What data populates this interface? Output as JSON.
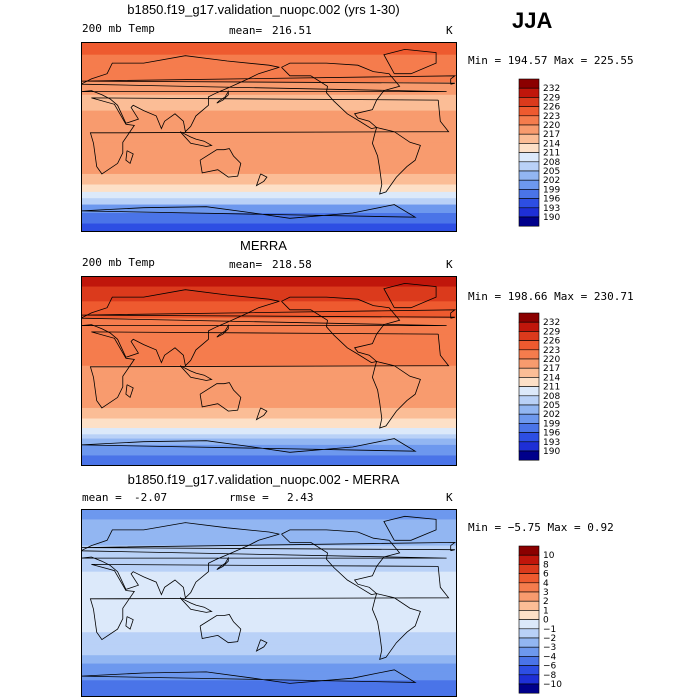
{
  "season": "JJA",
  "units_label": "K",
  "panels": [
    {
      "title": "b1850.f19_g17.validation_nuopc.002 (yrs 1-30)",
      "left_label": "200 mb Temp",
      "stat1_label": "mean=",
      "stat1_value": "216.51",
      "stat2_label": "",
      "stat2_value": "",
      "units": "K",
      "minmax": "Min = 194.57 Max = 225.55",
      "levels": [
        "232",
        "229",
        "226",
        "223",
        "220",
        "217",
        "214",
        "211",
        "208",
        "205",
        "202",
        "199",
        "196",
        "193",
        "190"
      ],
      "colors": [
        "#8b0000",
        "#c0160b",
        "#db3a1c",
        "#ee5a2f",
        "#f57c4d",
        "#f89b6e",
        "#fbbd96",
        "#fde0c7",
        "#dce9fa",
        "#b9d1f7",
        "#92b6f2",
        "#6d98ee",
        "#4a74e8",
        "#2d4ee3",
        "#1e2fd6",
        "#00008b"
      ],
      "bands": [
        {
          "lat": 90,
          "level": 3
        },
        {
          "lat": 78,
          "level": 4
        },
        {
          "lat": 66,
          "level": 4
        },
        {
          "lat": 52,
          "level": 5
        },
        {
          "lat": 40,
          "level": 6
        },
        {
          "lat": 25,
          "level": 5
        },
        {
          "lat": 10,
          "level": 5
        },
        {
          "lat": -5,
          "level": 5
        },
        {
          "lat": -20,
          "level": 5
        },
        {
          "lat": -35,
          "level": 6
        },
        {
          "lat": -45,
          "level": 7
        },
        {
          "lat": -52,
          "level": 8
        },
        {
          "lat": -58,
          "level": 9
        },
        {
          "lat": -64,
          "level": 11
        },
        {
          "lat": -72,
          "level": 12
        },
        {
          "lat": -82,
          "level": 13
        }
      ]
    },
    {
      "title": "MERRA",
      "left_label": "200 mb Temp",
      "stat1_label": "mean=",
      "stat1_value": "218.58",
      "stat2_label": "",
      "stat2_value": "",
      "units": "K",
      "minmax": "Min = 198.66 Max = 230.71",
      "levels": [
        "232",
        "229",
        "226",
        "223",
        "220",
        "217",
        "214",
        "211",
        "208",
        "205",
        "202",
        "199",
        "196",
        "193",
        "190"
      ],
      "colors": [
        "#8b0000",
        "#c0160b",
        "#db3a1c",
        "#ee5a2f",
        "#f57c4d",
        "#f89b6e",
        "#fbbd96",
        "#fde0c7",
        "#dce9fa",
        "#b9d1f7",
        "#92b6f2",
        "#6d98ee",
        "#4a74e8",
        "#2d4ee3",
        "#1e2fd6",
        "#00008b"
      ],
      "bands": [
        {
          "lat": 90,
          "level": 1
        },
        {
          "lat": 80,
          "level": 2
        },
        {
          "lat": 66,
          "level": 3
        },
        {
          "lat": 50,
          "level": 4
        },
        {
          "lat": 35,
          "level": 4
        },
        {
          "lat": 20,
          "level": 4
        },
        {
          "lat": 5,
          "level": 5
        },
        {
          "lat": -10,
          "level": 5
        },
        {
          "lat": -25,
          "level": 5
        },
        {
          "lat": -35,
          "level": 6
        },
        {
          "lat": -45,
          "level": 7
        },
        {
          "lat": -54,
          "level": 8
        },
        {
          "lat": -60,
          "level": 9
        },
        {
          "lat": -64,
          "level": 10
        },
        {
          "lat": -70,
          "level": 11
        },
        {
          "lat": -80,
          "level": 12
        }
      ]
    },
    {
      "title": "b1850.f19_g17.validation_nuopc.002 - MERRA",
      "left_label": "",
      "stat1_label": "mean =",
      "stat1_value": "-2.07",
      "stat2_label": "rmse =",
      "stat2_value": "2.43",
      "units": "K",
      "minmax": "Min = −5.75 Max =    0.92",
      "levels": [
        "10",
        "8",
        "6",
        "4",
        "3",
        "2",
        "1",
        "0",
        "−1",
        "−2",
        "−3",
        "−4",
        "−6",
        "−8",
        "−10"
      ],
      "colors": [
        "#8b0000",
        "#c0160b",
        "#db3a1c",
        "#ee5a2f",
        "#f57c4d",
        "#f89b6e",
        "#fbbd96",
        "#fde0c7",
        "#dce9fa",
        "#b9d1f7",
        "#92b6f2",
        "#6d98ee",
        "#4a74e8",
        "#2d4ee3",
        "#1e2fd6",
        "#00008b"
      ],
      "bands": [
        {
          "lat": 90,
          "level": 11
        },
        {
          "lat": 80,
          "level": 10
        },
        {
          "lat": 68,
          "level": 10
        },
        {
          "lat": 55,
          "level": 9
        },
        {
          "lat": 42,
          "level": 9
        },
        {
          "lat": 30,
          "level": 8
        },
        {
          "lat": 15,
          "level": 8
        },
        {
          "lat": 0,
          "level": 8
        },
        {
          "lat": -15,
          "level": 8
        },
        {
          "lat": -28,
          "level": 9
        },
        {
          "lat": -40,
          "level": 9
        },
        {
          "lat": -50,
          "level": 10
        },
        {
          "lat": -58,
          "level": 11
        },
        {
          "lat": -66,
          "level": 11
        },
        {
          "lat": -74,
          "level": 12
        },
        {
          "lat": -84,
          "level": 12
        }
      ]
    }
  ]
}
